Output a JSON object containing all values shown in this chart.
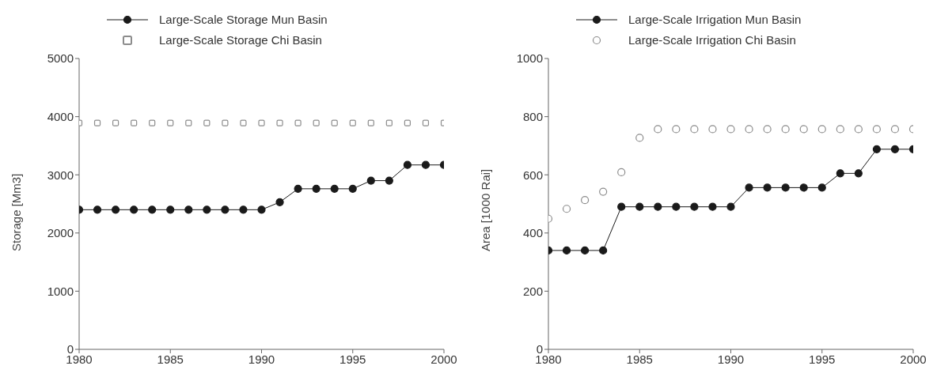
{
  "chart_data": [
    {
      "type": "line",
      "ylabel": "Storage [Mm3]",
      "x": [
        1980,
        1981,
        1982,
        1983,
        1984,
        1985,
        1986,
        1987,
        1988,
        1989,
        1990,
        1991,
        1992,
        1993,
        1994,
        1995,
        1996,
        1997,
        1998,
        1999,
        2000
      ],
      "xlim": [
        1980,
        2000
      ],
      "xticks": [
        1980,
        1985,
        1990,
        1995,
        2000
      ],
      "ylim": [
        0,
        5000
      ],
      "yticks": [
        0,
        1000,
        2000,
        3000,
        4000,
        5000
      ],
      "grid": false,
      "legend": "top",
      "marker": "circle",
      "line_style": "solid",
      "series": [
        {
          "name": "Large-Scale Storage Mun Basin",
          "color": "#1a1a1a",
          "values": [
            2400,
            2400,
            2400,
            2400,
            2400,
            2400,
            2400,
            2400,
            2400,
            2400,
            2400,
            2530,
            2760,
            2760,
            2760,
            2760,
            2900,
            2900,
            3170,
            3170,
            3170
          ]
        },
        {
          "name": "Large-Scale Storage Chi Basin",
          "type": "scatter",
          "marker": "square",
          "color": "#8c8c8c",
          "values": [
            3890,
            3890,
            3890,
            3890,
            3890,
            3890,
            3890,
            3890,
            3890,
            3890,
            3890,
            3890,
            3890,
            3890,
            3890,
            3890,
            3890,
            3890,
            3890,
            3890,
            3890
          ]
        }
      ]
    },
    {
      "type": "line",
      "ylabel": "Area [1000 Rai]",
      "x": [
        1980,
        1981,
        1982,
        1983,
        1984,
        1985,
        1986,
        1987,
        1988,
        1989,
        1990,
        1991,
        1992,
        1993,
        1994,
        1995,
        1996,
        1997,
        1998,
        1999,
        2000
      ],
      "xlim": [
        1980,
        2000
      ],
      "xticks": [
        1980,
        1985,
        1990,
        1995,
        2000
      ],
      "ylim": [
        0,
        1000
      ],
      "yticks": [
        0,
        200,
        400,
        600,
        800,
        1000
      ],
      "grid": false,
      "legend": "top",
      "marker": "circle",
      "line_style": "solid",
      "series": [
        {
          "name": "Large-Scale Irrigation Mun Basin",
          "color": "#1a1a1a",
          "values": [
            340,
            340,
            340,
            340,
            490,
            490,
            490,
            490,
            490,
            490,
            490,
            556,
            556,
            556,
            556,
            556,
            605,
            605,
            688,
            688,
            688
          ]
        },
        {
          "name": "Large-Scale Irrigation Chi Basin",
          "type": "scatter",
          "color": "#8c8c8c",
          "values": [
            449,
            483,
            513,
            542,
            609,
            727,
            757,
            757,
            757,
            757,
            757,
            757,
            757,
            757,
            757,
            757,
            757,
            757,
            757,
            757,
            757
          ]
        }
      ]
    }
  ]
}
